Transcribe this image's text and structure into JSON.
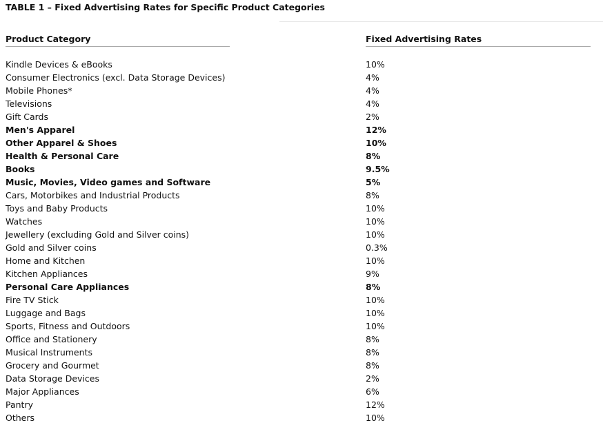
{
  "table": {
    "title": "TABLE 1 – Fixed Advertising Rates for Specific Product Categories",
    "columns": [
      "Product Category",
      "Fixed Advertising Rates"
    ],
    "rows": [
      {
        "category": "Kindle Devices & eBooks",
        "rate": "10%",
        "bold": false
      },
      {
        "category": "Consumer Electronics (excl. Data Storage Devices)",
        "rate": "4%",
        "bold": false
      },
      {
        "category": "Mobile Phones*",
        "rate": "4%",
        "bold": false
      },
      {
        "category": "Televisions",
        "rate": "4%",
        "bold": false
      },
      {
        "category": "Gift Cards",
        "rate": "2%",
        "bold": false
      },
      {
        "category": "Men's Apparel",
        "rate": "12%",
        "bold": true
      },
      {
        "category": "Other Apparel & Shoes",
        "rate": "10%",
        "bold": true
      },
      {
        "category": "Health & Personal Care",
        "rate": "8%",
        "bold": true
      },
      {
        "category": "Books",
        "rate": "9.5%",
        "bold": true
      },
      {
        "category": "Music, Movies, Video games and Software",
        "rate": "5%",
        "bold": true
      },
      {
        "category": "Cars, Motorbikes and Industrial Products",
        "rate": "8%",
        "bold": false
      },
      {
        "category": "Toys and Baby Products",
        "rate": "10%",
        "bold": false
      },
      {
        "category": "Watches",
        "rate": "10%",
        "bold": false
      },
      {
        "category": "Jewellery (excluding Gold and Silver coins)",
        "rate": "10%",
        "bold": false
      },
      {
        "category": "Gold and Silver coins",
        "rate": "0.3%",
        "bold": false
      },
      {
        "category": "Home and Kitchen",
        "rate": "10%",
        "bold": false
      },
      {
        "category": "Kitchen Appliances",
        "rate": "9%",
        "bold": false
      },
      {
        "category": "Personal Care Appliances",
        "rate": "8%",
        "bold": true
      },
      {
        "category": "Fire TV Stick",
        "rate": "10%",
        "bold": false
      },
      {
        "category": "Luggage and Bags",
        "rate": "10%",
        "bold": false
      },
      {
        "category": "Sports, Fitness and Outdoors",
        "rate": "10%",
        "bold": false
      },
      {
        "category": "Office and Stationery",
        "rate": "8%",
        "bold": false
      },
      {
        "category": "Musical Instruments",
        "rate": "8%",
        "bold": false
      },
      {
        "category": "Grocery and Gourmet",
        "rate": "8%",
        "bold": false
      },
      {
        "category": "Data Storage Devices",
        "rate": "2%",
        "bold": false
      },
      {
        "category": "Major Appliances",
        "rate": "6%",
        "bold": false
      },
      {
        "category": "Pantry",
        "rate": "12%",
        "bold": false
      },
      {
        "category": "Others",
        "rate": "10%",
        "bold": false
      }
    ]
  }
}
